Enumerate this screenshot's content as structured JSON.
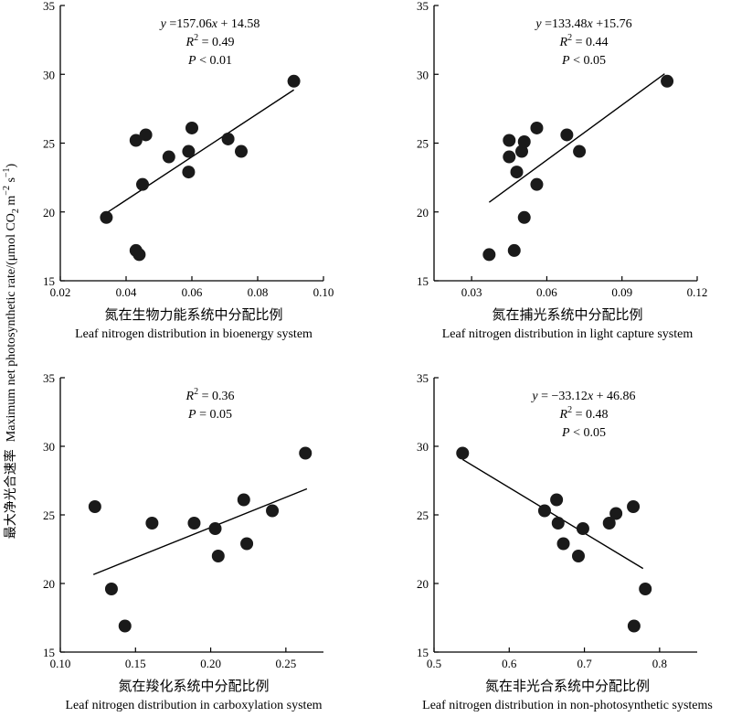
{
  "figure": {
    "y_label_cn": "最大净光合速率",
    "y_label_en": "Maximum net photosynthetic rate/(μmol CO",
    "y_label_en_sub": "2",
    "y_label_en_mid": " m",
    "y_label_en_sup1": "−2",
    "y_label_en_mid2": " s",
    "y_label_en_sup2": "−1",
    "y_label_en_end": ")"
  },
  "chart_data": [
    {
      "type": "scatter",
      "title": "",
      "xlabel_cn": "氮在生物力能系统中分配比例",
      "xlabel_en": "Leaf nitrogen distribution in bioenergy system",
      "ylabel": "",
      "xlim": [
        0.02,
        0.1
      ],
      "ylim": [
        15,
        35
      ],
      "xticks": [
        "0.02",
        "0.04",
        "0.06",
        "0.08",
        "0.10"
      ],
      "yticks": [
        "15",
        "20",
        "25",
        "30",
        "35"
      ],
      "points": [
        {
          "x": 0.034,
          "y": 19.6
        },
        {
          "x": 0.043,
          "y": 25.2
        },
        {
          "x": 0.043,
          "y": 17.2
        },
        {
          "x": 0.044,
          "y": 16.9
        },
        {
          "x": 0.045,
          "y": 22.0
        },
        {
          "x": 0.046,
          "y": 25.6
        },
        {
          "x": 0.053,
          "y": 24.0
        },
        {
          "x": 0.059,
          "y": 24.4
        },
        {
          "x": 0.059,
          "y": 22.9
        },
        {
          "x": 0.06,
          "y": 26.1
        },
        {
          "x": 0.071,
          "y": 25.3
        },
        {
          "x": 0.075,
          "y": 24.4
        },
        {
          "x": 0.091,
          "y": 29.5
        }
      ],
      "fit": {
        "x": [
          0.034,
          0.091
        ],
        "y": [
          19.92,
          28.87
        ]
      },
      "annotation": {
        "eq": "y =157.06x + 14.58",
        "eq_y": "y",
        "eq_mid": " =157.06",
        "eq_x": "x",
        "eq_rest": " + 14.58",
        "r2_val": " = 0.49",
        "p_rest": " < 0.01"
      }
    },
    {
      "type": "scatter",
      "title": "",
      "xlabel_cn": "氮在捕光系统中分配比例",
      "xlabel_en": "Leaf nitrogen distribution in light capture system",
      "ylabel": "",
      "xlim": [
        0.015,
        0.12
      ],
      "ylim": [
        15,
        35
      ],
      "xticks": [
        "0.03",
        "0.06",
        "0.09",
        "0.12"
      ],
      "yticks": [
        "15",
        "20",
        "25",
        "30",
        "35"
      ],
      "points": [
        {
          "x": 0.037,
          "y": 16.9
        },
        {
          "x": 0.045,
          "y": 25.2
        },
        {
          "x": 0.045,
          "y": 24.0
        },
        {
          "x": 0.047,
          "y": 17.2
        },
        {
          "x": 0.048,
          "y": 22.9
        },
        {
          "x": 0.05,
          "y": 24.4
        },
        {
          "x": 0.051,
          "y": 25.1
        },
        {
          "x": 0.051,
          "y": 19.6
        },
        {
          "x": 0.056,
          "y": 26.1
        },
        {
          "x": 0.056,
          "y": 22.0
        },
        {
          "x": 0.068,
          "y": 25.6
        },
        {
          "x": 0.073,
          "y": 24.4
        },
        {
          "x": 0.108,
          "y": 29.5
        }
      ],
      "fit": {
        "x": [
          0.037,
          0.107
        ],
        "y": [
          20.7,
          30.04
        ]
      },
      "annotation": {
        "eq": "y =133.48x +15.76",
        "eq_y": "y",
        "eq_mid": " =133.48",
        "eq_x": "x",
        "eq_rest": " +15.76",
        "r2_val": " = 0.44",
        "p_rest": " < 0.05"
      }
    },
    {
      "type": "scatter",
      "title": "",
      "xlabel_cn": "氮在羧化系统中分配比例",
      "xlabel_en": "Leaf nitrogen distribution in carboxylation system",
      "ylabel": "",
      "xlim": [
        0.1,
        0.275
      ],
      "ylim": [
        15,
        35
      ],
      "xticks": [
        "0.10",
        "0.15",
        "0.20",
        "0.25"
      ],
      "yticks": [
        "15",
        "20",
        "25",
        "30",
        "35"
      ],
      "points": [
        {
          "x": 0.123,
          "y": 25.6
        },
        {
          "x": 0.134,
          "y": 19.6
        },
        {
          "x": 0.143,
          "y": 16.9
        },
        {
          "x": 0.161,
          "y": 24.4
        },
        {
          "x": 0.189,
          "y": 24.4
        },
        {
          "x": 0.203,
          "y": 24.0
        },
        {
          "x": 0.205,
          "y": 22.0
        },
        {
          "x": 0.222,
          "y": 26.1
        },
        {
          "x": 0.224,
          "y": 22.9
        },
        {
          "x": 0.241,
          "y": 25.3
        },
        {
          "x": 0.263,
          "y": 29.5
        }
      ],
      "fit": {
        "x": [
          0.122,
          0.264
        ],
        "y": [
          20.65,
          26.9
        ]
      },
      "annotation": {
        "eq": "",
        "r2_val": " = 0.36",
        "p_rest": " = 0.05"
      }
    },
    {
      "type": "scatter",
      "title": "",
      "xlabel_cn": "氮在非光合系统中分配比例",
      "xlabel_en": "Leaf nitrogen distribution in non-photosynthetic systems",
      "ylabel": "",
      "xlim": [
        0.5,
        0.85
      ],
      "ylim": [
        15,
        35
      ],
      "xticks": [
        "0.5",
        "0.6",
        "0.7",
        "0.8"
      ],
      "yticks": [
        "15",
        "20",
        "25",
        "30",
        "35"
      ],
      "points": [
        {
          "x": 0.538,
          "y": 29.5
        },
        {
          "x": 0.647,
          "y": 25.3
        },
        {
          "x": 0.663,
          "y": 26.1
        },
        {
          "x": 0.665,
          "y": 24.4
        },
        {
          "x": 0.672,
          "y": 22.9
        },
        {
          "x": 0.692,
          "y": 22.0
        },
        {
          "x": 0.698,
          "y": 24.0
        },
        {
          "x": 0.733,
          "y": 24.4
        },
        {
          "x": 0.742,
          "y": 25.1
        },
        {
          "x": 0.765,
          "y": 25.6
        },
        {
          "x": 0.766,
          "y": 16.9
        },
        {
          "x": 0.781,
          "y": 19.6
        }
      ],
      "fit": {
        "x": [
          0.538,
          0.778
        ],
        "y": [
          29.04,
          21.09
        ]
      },
      "annotation": {
        "eq": "y = −33.12x + 46.86",
        "eq_y": "y",
        "eq_mid": " = −33.12",
        "eq_x": "x",
        "eq_rest": " + 46.86",
        "r2_val": " = 0.48",
        "p_rest": " < 0.05"
      }
    }
  ]
}
